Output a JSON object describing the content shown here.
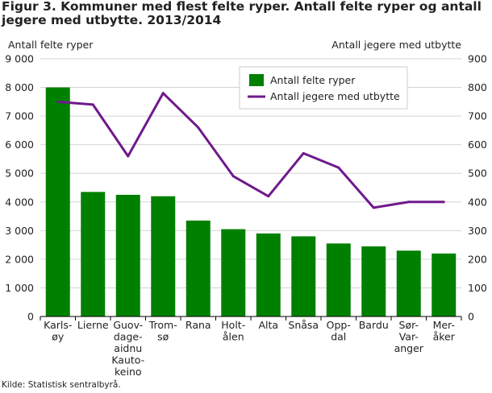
{
  "title": "Figur 3. Kommuner med flest felte ryper. Antall felte ryper og antall jegere med utbytte. 2013/2014",
  "source": "Kilde: Statistisk sentralbyrå.",
  "chart_data": {
    "type": "bar",
    "categories": [
      [
        "Karls-",
        "øy"
      ],
      [
        "Lierne"
      ],
      [
        "Guov-",
        "dage-",
        "aidnu",
        "Kauto-",
        "keino"
      ],
      [
        "Trom-",
        "sø"
      ],
      [
        "Rana"
      ],
      [
        "Holt-",
        "ålen"
      ],
      [
        "Alta"
      ],
      [
        "Snåsa"
      ],
      [
        "Opp-",
        "dal"
      ],
      [
        "Bardu"
      ],
      [
        "Sør-",
        "Var-",
        "anger"
      ],
      [
        "Mer-",
        "åker"
      ]
    ],
    "ylabel": "Antall felte ryper",
    "y2label": "Antall jegere med utbytte",
    "ylim": [
      0,
      9000
    ],
    "y2lim": [
      0,
      900
    ],
    "yticks": [
      "0",
      "1 000",
      "2 000",
      "3 000",
      "4 000",
      "5 000",
      "6 000",
      "7 000",
      "8 000",
      "9 000"
    ],
    "y2ticks": [
      "0",
      "100",
      "200",
      "300",
      "400",
      "500",
      "600",
      "700",
      "800",
      "900"
    ],
    "legend_position": "top-right",
    "grid": true,
    "series": [
      {
        "name": "Antall felte ryper",
        "type": "bar",
        "axis": "left",
        "color": "#008000",
        "values": [
          8000,
          4350,
          4250,
          4200,
          3350,
          3050,
          2900,
          2800,
          2550,
          2450,
          2300,
          2200
        ]
      },
      {
        "name": "Antall jegere med utbytte",
        "type": "line",
        "axis": "right",
        "color": "#6f1a8c",
        "values": [
          750,
          740,
          560,
          780,
          660,
          490,
          420,
          570,
          520,
          380,
          400,
          400
        ]
      }
    ]
  }
}
